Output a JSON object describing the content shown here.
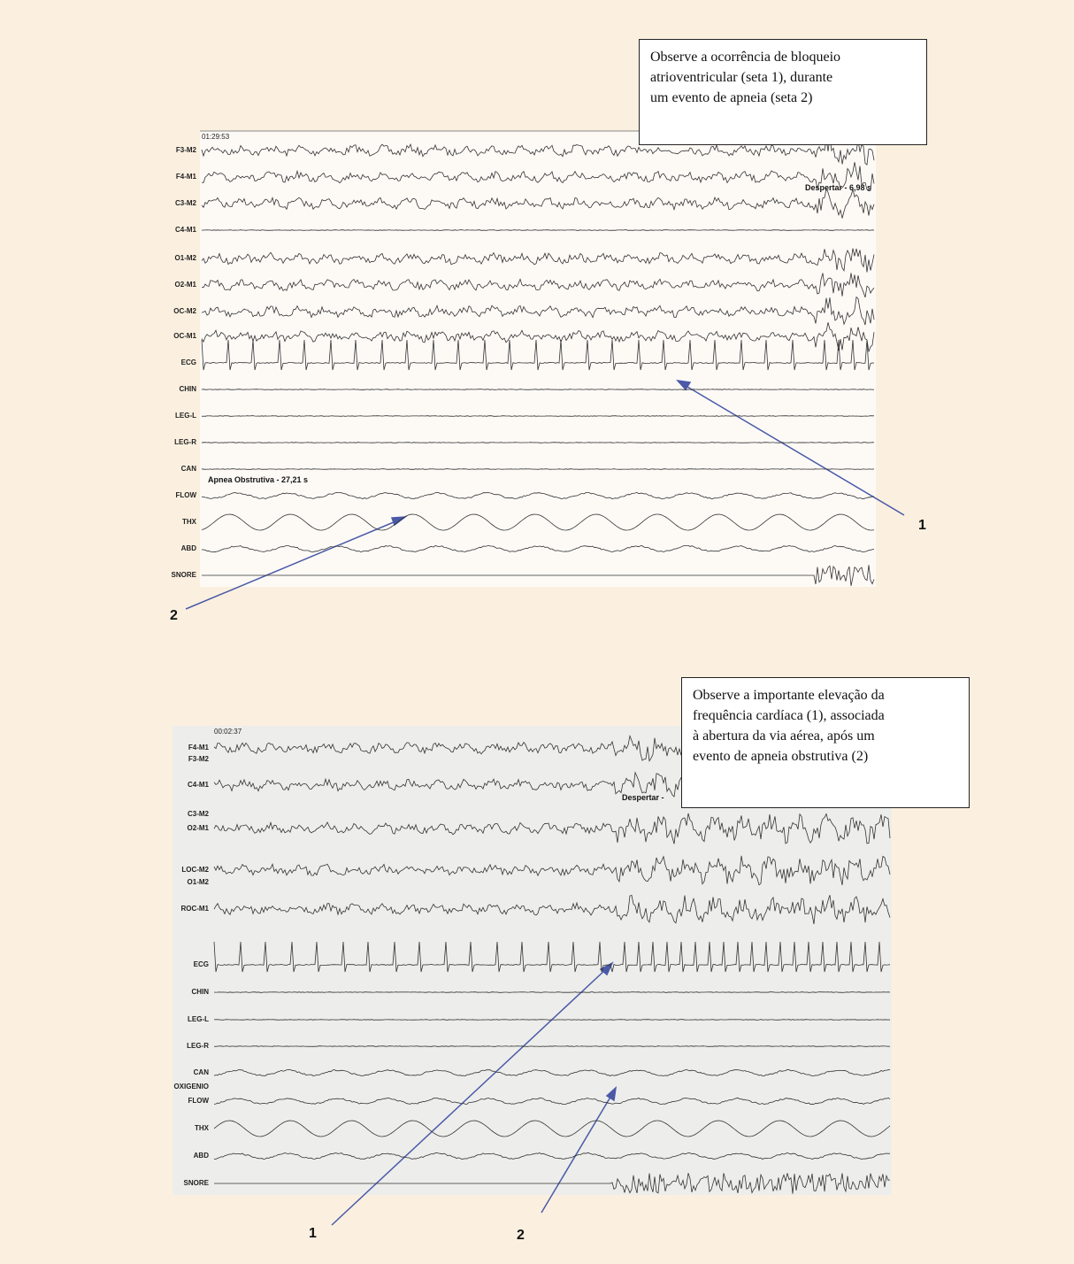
{
  "panel1": {
    "timestamp": "01:29:53",
    "channels": [
      "F3-M2",
      "F4-M1",
      "C3-M2",
      "C4-M1",
      "O1-M2",
      "O2-M1",
      "OC-M2",
      "OC-M1",
      "ECG",
      "CHIN",
      "LEG-L",
      "LEG-R",
      "CAN",
      "FLOW",
      "THX",
      "ABD",
      "SNORE"
    ],
    "events": [
      "Despertar - 6,98 s",
      "Apnea Obstrutiva - 27,21 s"
    ],
    "note": [
      "Observe a ocorrência de bloqueio",
      "atrioventricular (seta 1), durante",
      "um evento de apneia  (seta 2)"
    ],
    "arrows": [
      "1",
      "2"
    ]
  },
  "panel2": {
    "timestamp": "00:02:37",
    "channels": [
      "F4-M1",
      "F3-M2",
      "C4-M1",
      "C3-M2",
      "O2-M1",
      "LOC-M2",
      "O1-M2",
      "ROC-M1",
      "ECG",
      "CHIN",
      "LEG-L",
      "LEG-R",
      "CAN",
      "OXIGENIO",
      "FLOW",
      "THX",
      "ABD",
      "SNORE"
    ],
    "events": [
      "Despertar - "
    ],
    "note": [
      "Observe a importante elevação da",
      "frequência cardíaca (1), associada",
      "à abertura da via aérea, após um",
      "evento de apneia obstrutiva (2)"
    ],
    "arrows": [
      "1",
      "2"
    ]
  }
}
